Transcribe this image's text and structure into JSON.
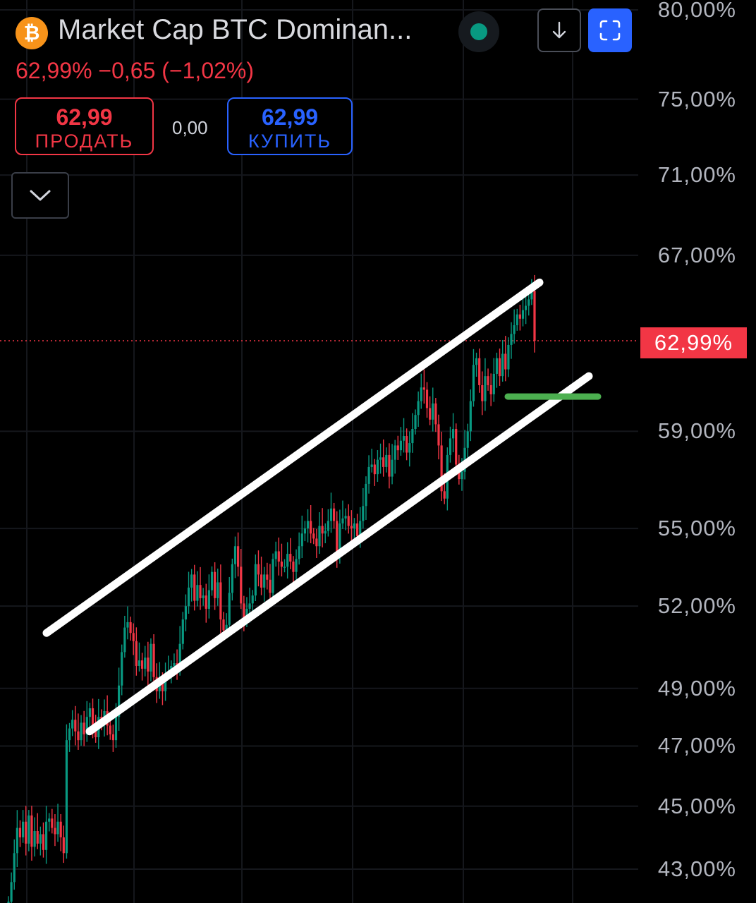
{
  "header": {
    "logo_glyph": "₿",
    "title": "Market Cap BTC Dominan...",
    "status_icon": "live-status-dot",
    "change": "62,99%  −0,65 (−1,02%)",
    "download_icon": "arrow-down-icon",
    "fullscreen_icon": "fullscreen-icon"
  },
  "trade": {
    "sell_price": "62,99",
    "sell_label": "ПРОДАТЬ",
    "spread": "0,00",
    "buy_price": "62,99",
    "buy_label": "КУПИТЬ",
    "collapse_icon": "chevron-down-icon"
  },
  "colors": {
    "up": "#089981",
    "down": "#f23645",
    "accent": "#2962ff",
    "channel": "#ffffff",
    "support": "#4caf50"
  },
  "chart_data": {
    "type": "candlestick",
    "y_ticks": [
      "80,00%",
      "75,00%",
      "71,00%",
      "67,00%",
      "59,00%",
      "55,00%",
      "52,00%",
      "49,00%",
      "47,00%",
      "45,00%",
      "43,00%"
    ],
    "y_tick_values": [
      80,
      75,
      71,
      67,
      59,
      55,
      52,
      49,
      47,
      45,
      43
    ],
    "y_scale": "log",
    "ylim": [
      42.1,
      80.2
    ],
    "current_price": 62.99,
    "current_price_label": "62,99%",
    "grid": true,
    "closes": [
      42.0,
      42.6,
      43.5,
      44.3,
      44.0,
      44.5,
      43.8,
      44.7,
      43.7,
      44.2,
      43.8,
      44.1,
      43.6,
      44.5,
      44.6,
      44.3,
      44.1,
      44.5,
      44.0,
      43.5,
      47.2,
      47.6,
      47.9,
      47.5,
      47.2,
      47.8,
      47.4,
      48.0,
      48.3,
      47.6,
      47.3,
      48.0,
      47.8,
      48.2,
      47.7,
      47.4,
      47.2,
      48.0,
      49.1,
      50.3,
      51.2,
      51.4,
      51.0,
      50.7,
      49.8,
      50.0,
      49.7,
      50.1,
      49.6,
      50.6,
      49.4,
      48.9,
      49.3,
      48.9,
      49.5,
      49.6,
      49.8,
      49.9,
      49.8,
      50.6,
      51.5,
      52.0,
      52.7,
      53.2,
      52.2,
      52.8,
      52.3,
      52.4,
      51.9,
      52.6,
      53.3,
      52.3,
      52.9,
      51.5,
      51.1,
      51.3,
      52.5,
      53.6,
      54.3,
      53.5,
      52.1,
      51.5,
      51.9,
      52.1,
      52.4,
      53.6,
      53.2,
      52.7,
      53.2,
      53.0,
      52.5,
      53.8,
      54.1,
      53.7,
      53.5,
      53.5,
      54.0,
      53.7,
      53.3,
      53.8,
      54.3,
      54.8,
      55.0,
      55.3,
      54.8,
      54.6,
      54.3,
      55.1,
      54.8,
      54.9,
      55.3,
      55.8,
      55.3,
      54.0,
      55.2,
      55.4,
      55.5,
      55.1,
      55.0,
      55.2,
      54.7,
      55.3,
      55.9,
      56.8,
      57.5,
      57.6,
      57.2,
      57.8,
      57.9,
      57.5,
      58.0,
      57.1,
      57.8,
      58.4,
      58.2,
      58.6,
      58.8,
      58.1,
      58.5,
      59.1,
      59.7,
      60.3,
      60.9,
      60.8,
      60.0,
      59.5,
      60.2,
      59.3,
      58.4,
      56.5,
      56.2,
      58.0,
      58.7,
      59.1,
      57.6,
      57.0,
      57.3,
      58.3,
      59.0,
      60.3,
      61.9,
      62.2,
      61.0,
      60.3,
      61.4,
      61.0,
      60.6,
      61.5,
      62.2,
      61.4,
      62.4,
      61.7,
      62.8,
      63.3,
      63.7,
      64.2,
      64.0,
      64.4,
      64.6,
      64.9,
      65.3,
      62.99
    ],
    "channel": {
      "upper": {
        "x": [
          66,
          765
        ],
        "y": [
          51.0,
          65.7
        ]
      },
      "lower": {
        "x": [
          127,
          835
        ],
        "y": [
          47.5,
          61.4
        ]
      }
    },
    "support_line": {
      "x": [
        720,
        848
      ],
      "y": [
        60.5,
        60.5
      ]
    }
  }
}
